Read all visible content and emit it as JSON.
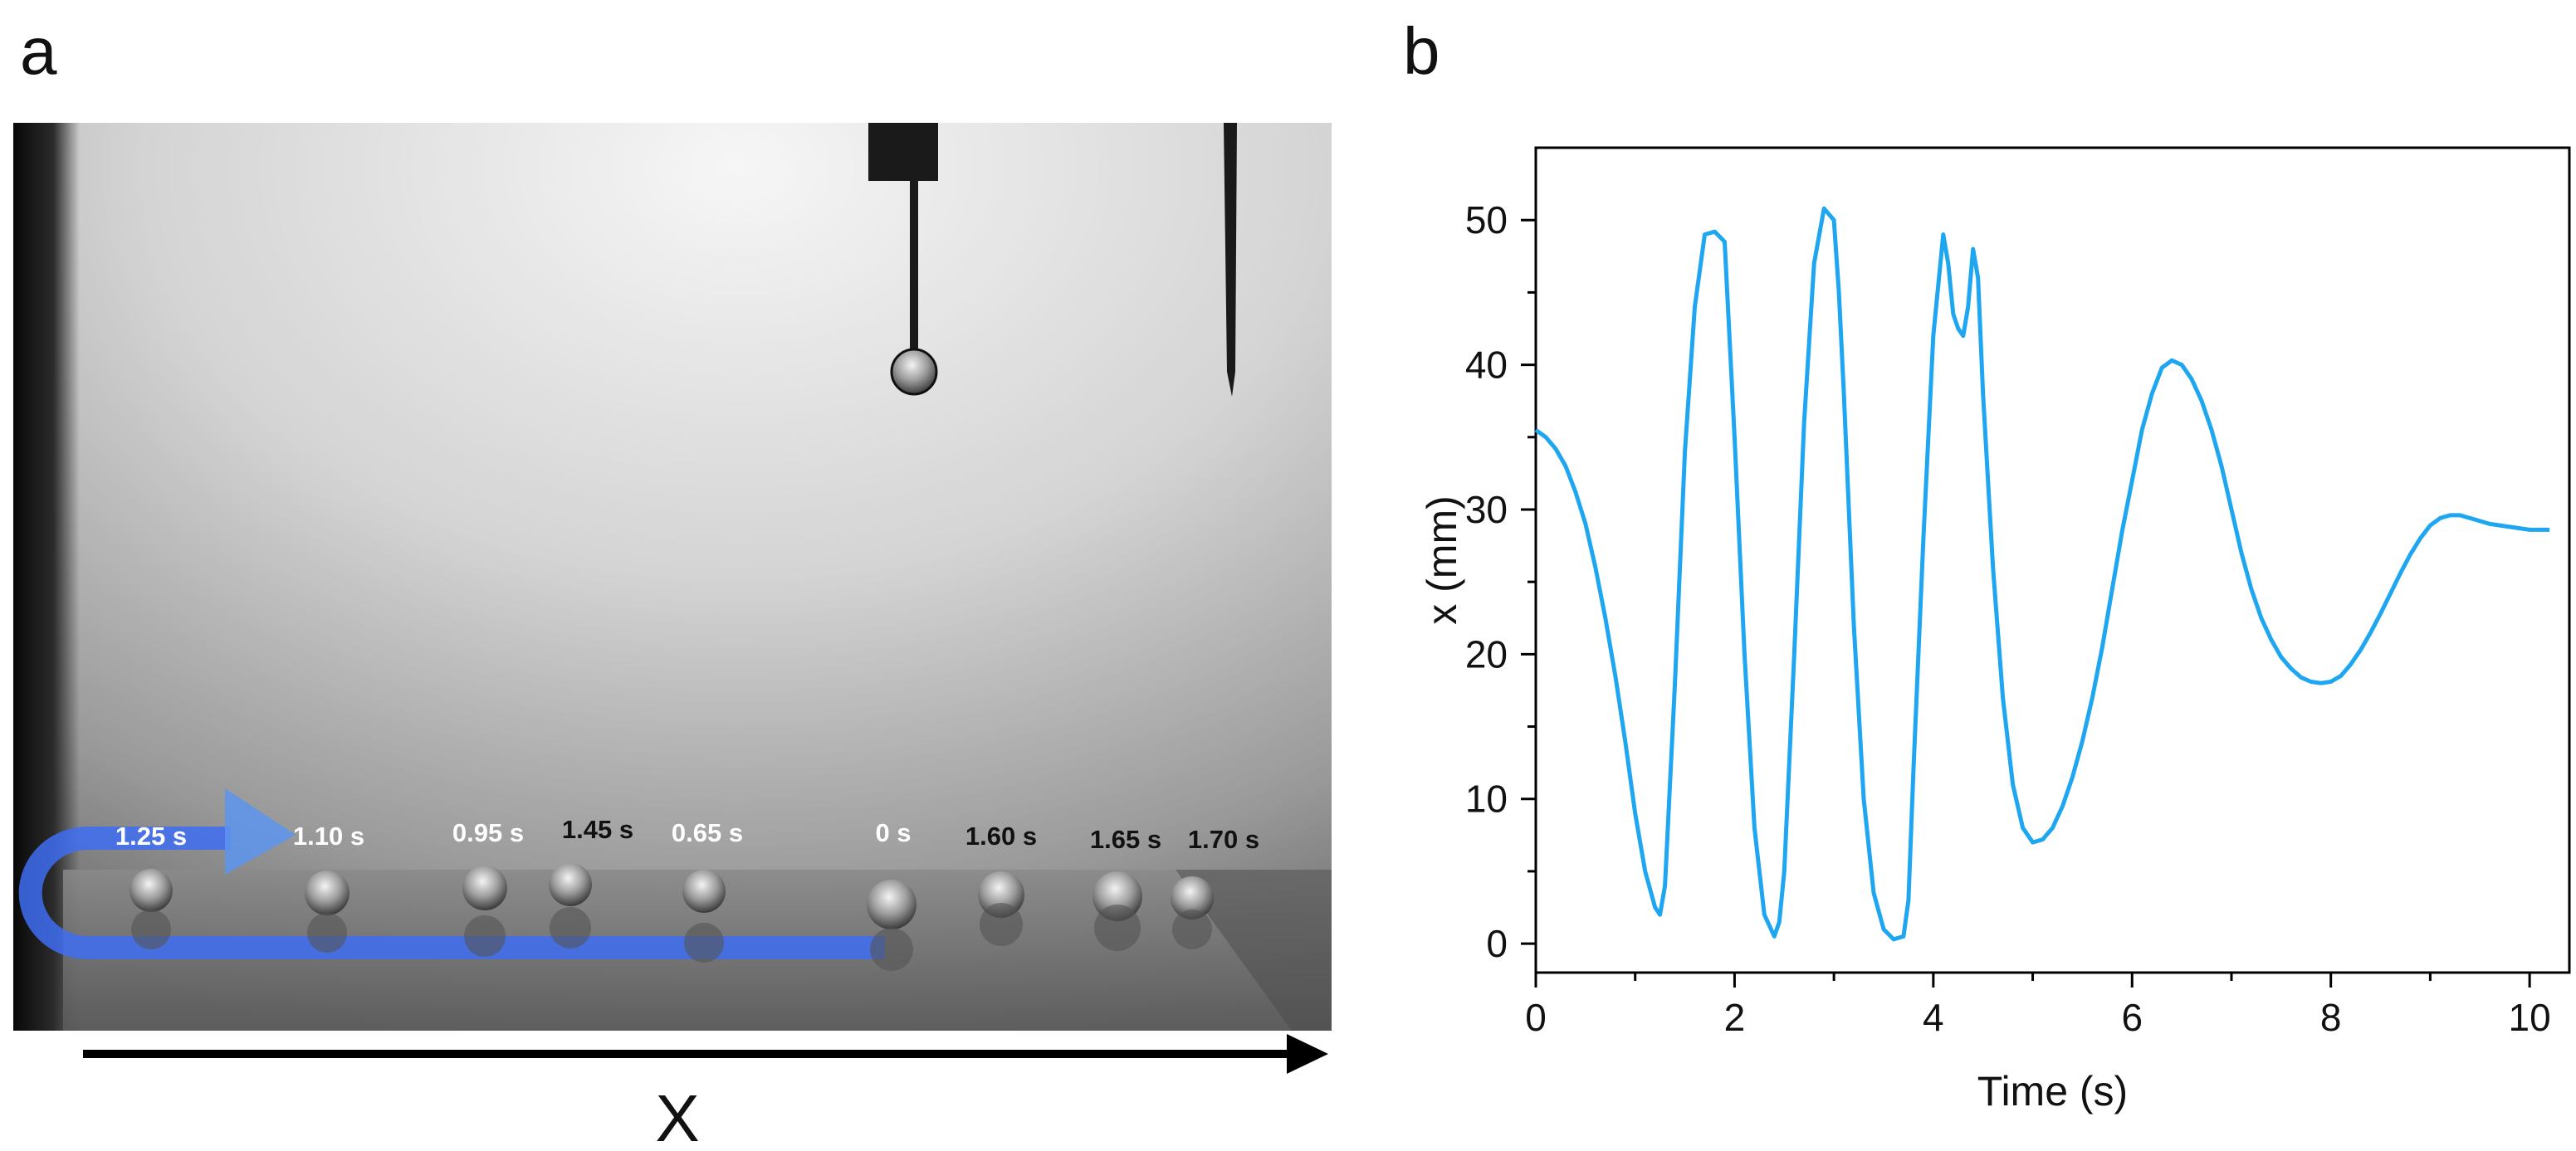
{
  "panels": {
    "a_letter": "a",
    "b_letter": "b"
  },
  "photo": {
    "time_labels": [
      "1.25 s",
      "1.10 s",
      "0.95 s",
      "1.45 s",
      "0.65 s",
      "0 s",
      "1.60 s",
      "1.65 s",
      "1.70 s"
    ],
    "x_axis_label": "X",
    "path_color": "#3f6df2"
  },
  "chart_data": {
    "type": "line",
    "xlabel": "Time (s)",
    "ylabel": "x (mm)",
    "xlim": [
      0,
      10.4
    ],
    "ylim": [
      -2,
      55
    ],
    "xticks": [
      0,
      2,
      4,
      6,
      8,
      10
    ],
    "yticks": [
      0,
      10,
      20,
      30,
      40,
      50
    ],
    "grid": false,
    "color": "#1ea7f0",
    "series": [
      {
        "x": [
          0,
          0.1,
          0.2,
          0.3,
          0.4,
          0.5,
          0.6,
          0.7,
          0.8,
          0.9,
          1.0,
          1.1,
          1.2,
          1.25,
          1.3,
          1.4,
          1.5,
          1.6,
          1.7,
          1.8,
          1.9,
          2.0,
          2.1,
          2.2,
          2.3,
          2.4,
          2.45,
          2.5,
          2.6,
          2.7,
          2.8,
          2.9,
          3.0,
          3.05,
          3.1,
          3.2,
          3.3,
          3.4,
          3.5,
          3.6,
          3.7,
          3.75,
          3.8,
          3.9,
          4.0,
          4.1,
          4.15,
          4.2,
          4.25,
          4.3,
          4.35,
          4.4,
          4.45,
          4.5,
          4.6,
          4.7,
          4.8,
          4.9,
          5.0,
          5.1,
          5.2,
          5.3,
          5.4,
          5.5,
          5.6,
          5.7,
          5.8,
          5.9,
          6.0,
          6.1,
          6.2,
          6.3,
          6.4,
          6.5,
          6.6,
          6.7,
          6.8,
          6.9,
          7.0,
          7.1,
          7.2,
          7.3,
          7.4,
          7.5,
          7.6,
          7.7,
          7.8,
          7.9,
          8.0,
          8.1,
          8.2,
          8.3,
          8.4,
          8.5,
          8.6,
          8.7,
          8.8,
          8.9,
          9.0,
          9.1,
          9.2,
          9.3,
          9.4,
          9.5,
          9.6,
          9.7,
          9.8,
          9.9,
          10.0,
          10.1,
          10.2
        ],
        "y": [
          35.5,
          35.0,
          34.2,
          33.0,
          31.2,
          29.0,
          26.0,
          22.5,
          18.5,
          14.0,
          9.0,
          5.0,
          2.5,
          2.0,
          4.0,
          18.0,
          34.0,
          44.0,
          49.0,
          49.2,
          48.5,
          35.0,
          20.0,
          8.0,
          2.0,
          0.5,
          1.5,
          5.0,
          20.0,
          36.0,
          47.0,
          50.8,
          50.0,
          45.0,
          38.0,
          22.0,
          10.0,
          3.5,
          1.0,
          0.3,
          0.5,
          3.0,
          12.0,
          28.0,
          42.0,
          49.0,
          47.0,
          43.5,
          42.5,
          42.0,
          44.0,
          48.0,
          46.0,
          38.0,
          26.0,
          17.0,
          11.0,
          8.0,
          7.0,
          7.2,
          8.0,
          9.5,
          11.5,
          14.0,
          17.0,
          20.5,
          24.5,
          28.5,
          32.0,
          35.5,
          38.0,
          39.8,
          40.3,
          40.0,
          39.0,
          37.5,
          35.5,
          33.0,
          30.0,
          27.0,
          24.5,
          22.5,
          21.0,
          19.8,
          19.0,
          18.4,
          18.1,
          18.0,
          18.1,
          18.5,
          19.3,
          20.3,
          21.5,
          22.8,
          24.2,
          25.6,
          26.9,
          28.0,
          28.9,
          29.4,
          29.6,
          29.6,
          29.4,
          29.2,
          29.0,
          28.9,
          28.8,
          28.7,
          28.6,
          28.6,
          28.6
        ]
      }
    ]
  }
}
